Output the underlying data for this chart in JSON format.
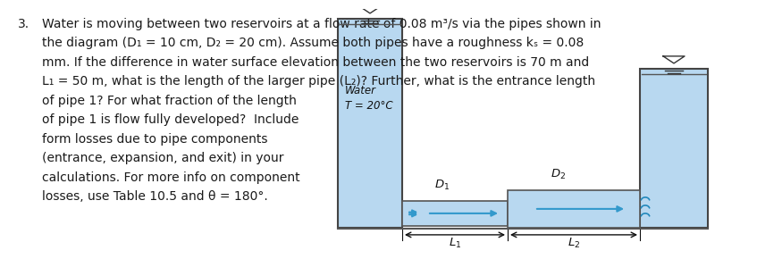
{
  "background_color": "#ffffff",
  "text_color": "#1a1a1a",
  "water_color": "#b8d8f0",
  "pipe_color": "#b8d8f0",
  "pipe_border_color": "#555555",
  "reservoir_border_color": "#444444",
  "arrow_color": "#3399cc",
  "font_size_main": 10.0,
  "font_size_label": 9.0,
  "lines_full": [
    "Water is moving between two reservoirs at a flow rate of 0.08 m³/s via the pipes shown in",
    "the diagram (D₁ = 10 cm, D₂ = 20 cm). Assume both pipes have a roughness kₛ = 0.08",
    "mm. If the difference in water surface elevation between the two reservoirs is 70 m and",
    "L₁ = 50 m, what is the length of the larger pipe (L₂)? Further, what is the entrance length"
  ],
  "lines_short": [
    "of pipe 1? For what fraction of the length",
    "of pipe 1 is flow fully developed?  Include",
    "form losses due to pipe components",
    "(entrance, expansion, and exit) in your",
    "calculations. For more info on component",
    "losses, use Table 10.5 and θ = 180°."
  ],
  "water_label": "Water\nT = 20°C",
  "D1_label": "D_1",
  "D2_label": "D_2",
  "L1_label": "L_1",
  "L2_label": "L_2"
}
